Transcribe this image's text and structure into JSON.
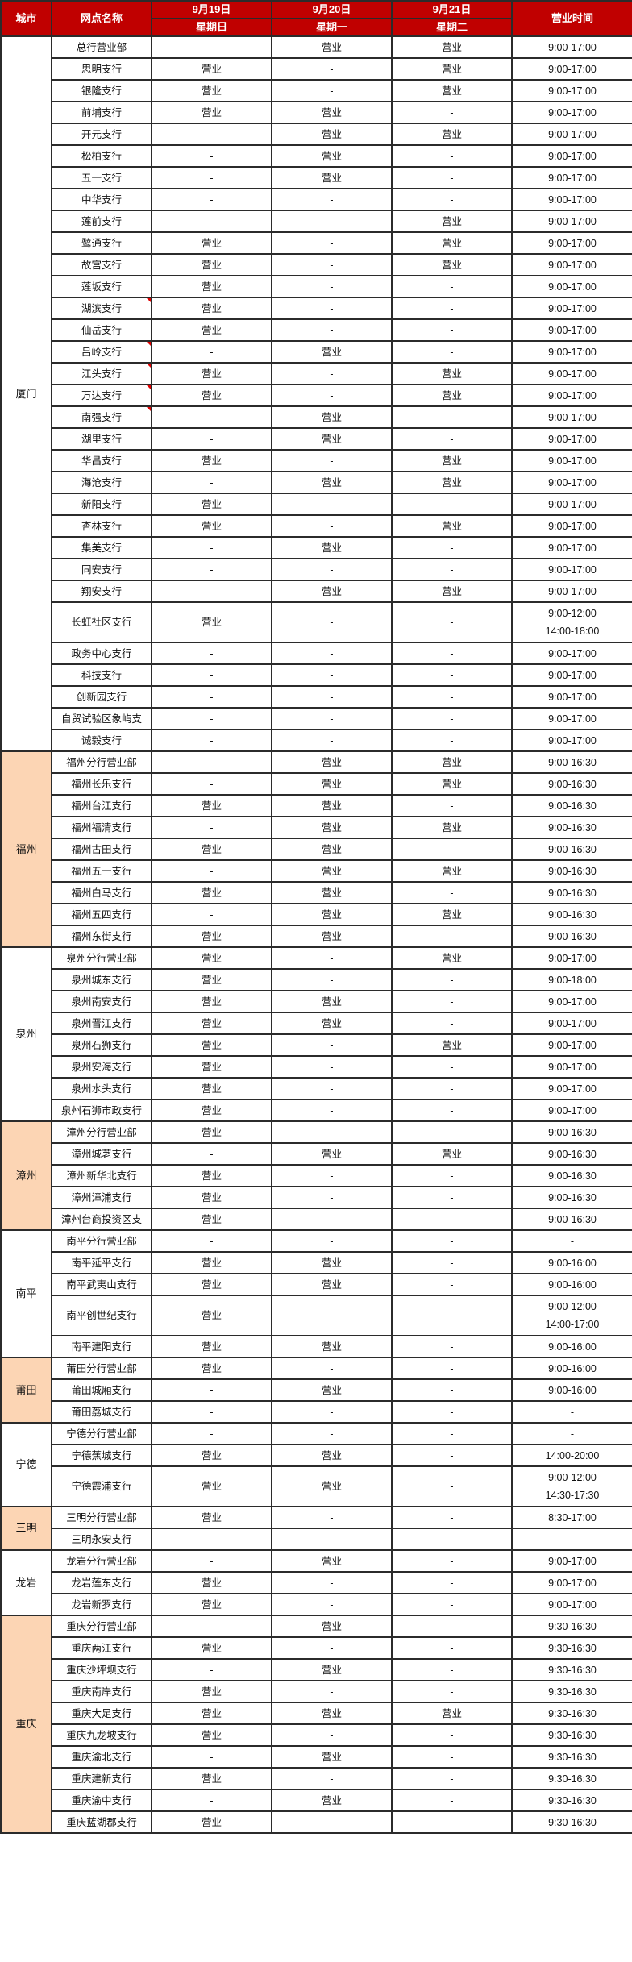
{
  "colors": {
    "header_bg": "#c00000",
    "highlight_bg": "#fcd5b4",
    "comment_marker": "#e00000"
  },
  "header": {
    "city": "城市",
    "name": "网点名称",
    "dates": [
      {
        "date": "9月19日",
        "weekday": "星期日"
      },
      {
        "date": "9月20日",
        "weekday": "星期一"
      },
      {
        "date": "9月21日",
        "weekday": "星期二"
      }
    ],
    "hours": "营业时间"
  },
  "groups": [
    {
      "city": "厦门",
      "highlighted": false,
      "rows": [
        {
          "name": "总行营业部",
          "days": [
            "-",
            "营业",
            "营业"
          ],
          "hours": [
            "9:00-17:00"
          ]
        },
        {
          "name": "思明支行",
          "days": [
            "营业",
            "-",
            "营业"
          ],
          "hours": [
            "9:00-17:00"
          ]
        },
        {
          "name": "银隆支行",
          "days": [
            "营业",
            "-",
            "营业"
          ],
          "hours": [
            "9:00-17:00"
          ]
        },
        {
          "name": "前埔支行",
          "days": [
            "营业",
            "营业",
            "-"
          ],
          "hours": [
            "9:00-17:00"
          ]
        },
        {
          "name": "开元支行",
          "days": [
            "-",
            "营业",
            "营业"
          ],
          "hours": [
            "9:00-17:00"
          ]
        },
        {
          "name": "松柏支行",
          "days": [
            "-",
            "营业",
            "-"
          ],
          "hours": [
            "9:00-17:00"
          ]
        },
        {
          "name": "五一支行",
          "days": [
            "-",
            "营业",
            "-"
          ],
          "hours": [
            "9:00-17:00"
          ]
        },
        {
          "name": "中华支行",
          "days": [
            "-",
            "-",
            "-"
          ],
          "hours": [
            "9:00-17:00"
          ]
        },
        {
          "name": "莲前支行",
          "days": [
            "-",
            "-",
            "营业"
          ],
          "hours": [
            "9:00-17:00"
          ]
        },
        {
          "name": "鹭通支行",
          "days": [
            "营业",
            "-",
            "营业"
          ],
          "hours": [
            "9:00-17:00"
          ]
        },
        {
          "name": "故宫支行",
          "days": [
            "营业",
            "-",
            "营业"
          ],
          "hours": [
            "9:00-17:00"
          ]
        },
        {
          "name": "莲坂支行",
          "days": [
            "营业",
            "-",
            "-"
          ],
          "hours": [
            "9:00-17:00"
          ]
        },
        {
          "name": "湖滨支行",
          "days": [
            "营业",
            "-",
            "-"
          ],
          "hours": [
            "9:00-17:00"
          ],
          "comment": true
        },
        {
          "name": "仙岳支行",
          "days": [
            "营业",
            "-",
            "-"
          ],
          "hours": [
            "9:00-17:00"
          ]
        },
        {
          "name": "吕岭支行",
          "days": [
            "-",
            "营业",
            "-"
          ],
          "hours": [
            "9:00-17:00"
          ],
          "comment": true
        },
        {
          "name": "江头支行",
          "days": [
            "营业",
            "-",
            "营业"
          ],
          "hours": [
            "9:00-17:00"
          ],
          "comment": true
        },
        {
          "name": "万达支行",
          "days": [
            "营业",
            "-",
            "营业"
          ],
          "hours": [
            "9:00-17:00"
          ],
          "comment": true
        },
        {
          "name": "南强支行",
          "days": [
            "-",
            "营业",
            "-"
          ],
          "hours": [
            "9:00-17:00"
          ],
          "comment": true
        },
        {
          "name": "湖里支行",
          "days": [
            "-",
            "营业",
            "-"
          ],
          "hours": [
            "9:00-17:00"
          ]
        },
        {
          "name": "华昌支行",
          "days": [
            "营业",
            "-",
            "营业"
          ],
          "hours": [
            "9:00-17:00"
          ]
        },
        {
          "name": "海沧支行",
          "days": [
            "-",
            "营业",
            "营业"
          ],
          "hours": [
            "9:00-17:00"
          ]
        },
        {
          "name": "新阳支行",
          "days": [
            "营业",
            "-",
            "-"
          ],
          "hours": [
            "9:00-17:00"
          ]
        },
        {
          "name": "杏林支行",
          "days": [
            "营业",
            "-",
            "营业"
          ],
          "hours": [
            "9:00-17:00"
          ]
        },
        {
          "name": "集美支行",
          "days": [
            "-",
            "营业",
            "-"
          ],
          "hours": [
            "9:00-17:00"
          ]
        },
        {
          "name": "同安支行",
          "days": [
            "-",
            "-",
            "-"
          ],
          "hours": [
            "9:00-17:00"
          ]
        },
        {
          "name": "翔安支行",
          "days": [
            "-",
            "营业",
            "营业"
          ],
          "hours": [
            "9:00-17:00"
          ]
        },
        {
          "name": "长虹社区支行",
          "days": [
            "营业",
            "-",
            "-"
          ],
          "hours": [
            "9:00-12:00",
            "14:00-18:00"
          ]
        },
        {
          "name": "政务中心支行",
          "days": [
            "-",
            "-",
            "-"
          ],
          "hours": [
            "9:00-17:00"
          ]
        },
        {
          "name": "科技支行",
          "days": [
            "-",
            "-",
            "-"
          ],
          "hours": [
            "9:00-17:00"
          ]
        },
        {
          "name": "创新园支行",
          "days": [
            "-",
            "-",
            "-"
          ],
          "hours": [
            "9:00-17:00"
          ]
        },
        {
          "name": "自贸试验区象屿支",
          "days": [
            "-",
            "-",
            "-"
          ],
          "hours": [
            "9:00-17:00"
          ]
        },
        {
          "name": "诚毅支行",
          "days": [
            "-",
            "-",
            "-"
          ],
          "hours": [
            "9:00-17:00"
          ]
        }
      ]
    },
    {
      "city": "福州",
      "highlighted": true,
      "rows": [
        {
          "name": "福州分行营业部",
          "days": [
            "-",
            "营业",
            "营业"
          ],
          "hours": [
            "9:00-16:30"
          ]
        },
        {
          "name": "福州长乐支行",
          "days": [
            "-",
            "营业",
            "营业"
          ],
          "hours": [
            "9:00-16:30"
          ]
        },
        {
          "name": "福州台江支行",
          "days": [
            "营业",
            "营业",
            "-"
          ],
          "hours": [
            "9:00-16:30"
          ]
        },
        {
          "name": "福州福清支行",
          "days": [
            "-",
            "营业",
            "营业"
          ],
          "hours": [
            "9:00-16:30"
          ]
        },
        {
          "name": "福州古田支行",
          "days": [
            "营业",
            "营业",
            "-"
          ],
          "hours": [
            "9:00-16:30"
          ]
        },
        {
          "name": "福州五一支行",
          "days": [
            "-",
            "营业",
            "营业"
          ],
          "hours": [
            "9:00-16:30"
          ]
        },
        {
          "name": "福州白马支行",
          "days": [
            "营业",
            "营业",
            "-"
          ],
          "hours": [
            "9:00-16:30"
          ]
        },
        {
          "name": "福州五四支行",
          "days": [
            "-",
            "营业",
            "营业"
          ],
          "hours": [
            "9:00-16:30"
          ]
        },
        {
          "name": "福州东街支行",
          "days": [
            "营业",
            "营业",
            "-"
          ],
          "hours": [
            "9:00-16:30"
          ]
        }
      ]
    },
    {
      "city": "泉州",
      "highlighted": false,
      "rows": [
        {
          "name": "泉州分行营业部",
          "days": [
            "营业",
            "-",
            "营业"
          ],
          "hours": [
            "9:00-17:00"
          ]
        },
        {
          "name": "泉州城东支行",
          "days": [
            "营业",
            "-",
            "-"
          ],
          "hours": [
            "9:00-18:00"
          ]
        },
        {
          "name": "泉州南安支行",
          "days": [
            "营业",
            "营业",
            "-"
          ],
          "hours": [
            "9:00-17:00"
          ]
        },
        {
          "name": "泉州晋江支行",
          "days": [
            "营业",
            "营业",
            "-"
          ],
          "hours": [
            "9:00-17:00"
          ]
        },
        {
          "name": "泉州石狮支行",
          "days": [
            "营业",
            "-",
            "营业"
          ],
          "hours": [
            "9:00-17:00"
          ]
        },
        {
          "name": "泉州安海支行",
          "days": [
            "营业",
            "-",
            "-"
          ],
          "hours": [
            "9:00-17:00"
          ]
        },
        {
          "name": "泉州水头支行",
          "days": [
            "营业",
            "-",
            "-"
          ],
          "hours": [
            "9:00-17:00"
          ]
        },
        {
          "name": "泉州石狮市政支行",
          "days": [
            "营业",
            "-",
            "-"
          ],
          "hours": [
            "9:00-17:00"
          ]
        }
      ]
    },
    {
      "city": "漳州",
      "highlighted": true,
      "rows": [
        {
          "name": "漳州分行营业部",
          "days": [
            "营业",
            "-",
            ""
          ],
          "hours": [
            "9:00-16:30"
          ]
        },
        {
          "name": "漳州城荖支行",
          "days": [
            "-",
            "营业",
            "营业"
          ],
          "hours": [
            "9:00-16:30"
          ]
        },
        {
          "name": "漳州新华北支行",
          "days": [
            "营业",
            "-",
            "-"
          ],
          "hours": [
            "9:00-16:30"
          ]
        },
        {
          "name": "漳州漳浦支行",
          "days": [
            "营业",
            "-",
            "-"
          ],
          "hours": [
            "9:00-16:30"
          ]
        },
        {
          "name": "漳州台商投资区支",
          "days": [
            "营业",
            "-",
            ""
          ],
          "hours": [
            "9:00-16:30"
          ]
        }
      ]
    },
    {
      "city": "南平",
      "highlighted": false,
      "rows": [
        {
          "name": "南平分行营业部",
          "days": [
            "-",
            "-",
            "-"
          ],
          "hours": [
            "-"
          ]
        },
        {
          "name": "南平延平支行",
          "days": [
            "营业",
            "营业",
            "-"
          ],
          "hours": [
            "9:00-16:00"
          ]
        },
        {
          "name": "南平武夷山支行",
          "days": [
            "营业",
            "营业",
            "-"
          ],
          "hours": [
            "9:00-16:00"
          ]
        },
        {
          "name": "南平创世纪支行",
          "days": [
            "营业",
            "-",
            "-"
          ],
          "hours": [
            "9:00-12:00",
            "14:00-17:00"
          ]
        },
        {
          "name": "南平建阳支行",
          "days": [
            "营业",
            "营业",
            "-"
          ],
          "hours": [
            "9:00-16:00"
          ]
        }
      ]
    },
    {
      "city": "莆田",
      "highlighted": true,
      "rows": [
        {
          "name": "莆田分行营业部",
          "days": [
            "营业",
            "-",
            "-"
          ],
          "hours": [
            "9:00-16:00"
          ]
        },
        {
          "name": "莆田城厢支行",
          "days": [
            "-",
            "营业",
            "-"
          ],
          "hours": [
            "9:00-16:00"
          ]
        },
        {
          "name": "莆田荔城支行",
          "days": [
            "-",
            "-",
            "-"
          ],
          "hours": [
            "-"
          ]
        }
      ]
    },
    {
      "city": "宁德",
      "highlighted": false,
      "rows": [
        {
          "name": "宁德分行营业部",
          "days": [
            "-",
            "-",
            "-"
          ],
          "hours": [
            "-"
          ]
        },
        {
          "name": "宁德蕉城支行",
          "days": [
            "营业",
            "营业",
            "-"
          ],
          "hours": [
            "14:00-20:00"
          ]
        },
        {
          "name": "宁德霞浦支行",
          "days": [
            "营业",
            "营业",
            "-"
          ],
          "hours": [
            "9:00-12:00",
            "14:30-17:30"
          ]
        }
      ]
    },
    {
      "city": "三明",
      "highlighted": true,
      "rows": [
        {
          "name": "三明分行营业部",
          "days": [
            "营业",
            "-",
            "-"
          ],
          "hours": [
            "8:30-17:00"
          ]
        },
        {
          "name": "三明永安支行",
          "days": [
            "-",
            "-",
            "-"
          ],
          "hours": [
            "-"
          ]
        }
      ]
    },
    {
      "city": "龙岩",
      "highlighted": false,
      "rows": [
        {
          "name": "龙岩分行营业部",
          "days": [
            "-",
            "营业",
            "-"
          ],
          "hours": [
            "9:00-17:00"
          ]
        },
        {
          "name": "龙岩莲东支行",
          "days": [
            "营业",
            "-",
            "-"
          ],
          "hours": [
            "9:00-17:00"
          ]
        },
        {
          "name": "龙岩新罗支行",
          "days": [
            "营业",
            "-",
            "-"
          ],
          "hours": [
            "9:00-17:00"
          ]
        }
      ]
    },
    {
      "city": "重庆",
      "highlighted": true,
      "rows": [
        {
          "name": "重庆分行营业部",
          "days": [
            "-",
            "营业",
            "-"
          ],
          "hours": [
            "9:30-16:30"
          ]
        },
        {
          "name": "重庆两江支行",
          "days": [
            "营业",
            "-",
            "-"
          ],
          "hours": [
            "9:30-16:30"
          ]
        },
        {
          "name": "重庆沙坪坝支行",
          "days": [
            "-",
            "营业",
            "-"
          ],
          "hours": [
            "9:30-16:30"
          ]
        },
        {
          "name": "重庆南岸支行",
          "days": [
            "营业",
            "-",
            "-"
          ],
          "hours": [
            "9:30-16:30"
          ]
        },
        {
          "name": "重庆大足支行",
          "days": [
            "营业",
            "营业",
            "营业"
          ],
          "hours": [
            "9:30-16:30"
          ]
        },
        {
          "name": "重庆九龙坡支行",
          "days": [
            "营业",
            "-",
            "-"
          ],
          "hours": [
            "9:30-16:30"
          ]
        },
        {
          "name": "重庆渝北支行",
          "days": [
            "-",
            "营业",
            "-"
          ],
          "hours": [
            "9:30-16:30"
          ]
        },
        {
          "name": "重庆建新支行",
          "days": [
            "营业",
            "-",
            "-"
          ],
          "hours": [
            "9:30-16:30"
          ]
        },
        {
          "name": "重庆渝中支行",
          "days": [
            "-",
            "营业",
            "-"
          ],
          "hours": [
            "9:30-16:30"
          ]
        },
        {
          "name": "重庆蓝湖郡支行",
          "days": [
            "营业",
            "-",
            "-"
          ],
          "hours": [
            "9:30-16:30"
          ]
        }
      ]
    }
  ]
}
